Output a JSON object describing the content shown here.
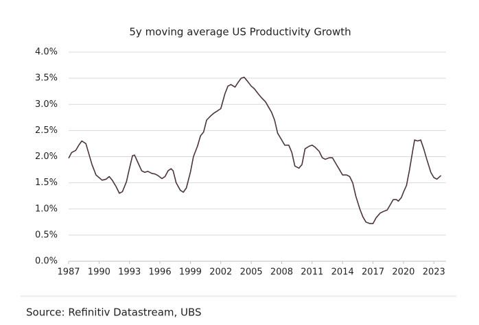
{
  "chart_data": {
    "type": "line",
    "title": "5y moving average US Productivity Growth",
    "source": "Source: Refinitiv Datastream, UBS",
    "x": [
      1987.0,
      1987.3,
      1987.7,
      1988.0,
      1988.3,
      1988.7,
      1989.0,
      1989.3,
      1989.7,
      1990.0,
      1990.3,
      1990.7,
      1991.0,
      1991.3,
      1991.7,
      1992.0,
      1992.3,
      1992.7,
      1993.0,
      1993.3,
      1993.5,
      1993.8,
      1994.2,
      1994.5,
      1994.8,
      1995.2,
      1995.5,
      1995.8,
      1996.2,
      1996.5,
      1996.8,
      1997.1,
      1997.3,
      1997.6,
      1998.0,
      1998.3,
      1998.6,
      1999.0,
      1999.3,
      1999.7,
      2000.0,
      2000.3,
      2000.6,
      2001.0,
      2001.3,
      2001.7,
      2002.0,
      2002.4,
      2002.7,
      2003.0,
      2003.4,
      2003.7,
      2004.0,
      2004.3,
      2004.6,
      2005.0,
      2005.3,
      2005.7,
      2006.0,
      2006.4,
      2006.7,
      2007.0,
      2007.3,
      2007.6,
      2008.0,
      2008.3,
      2008.7,
      2009.0,
      2009.3,
      2009.7,
      2010.0,
      2010.3,
      2010.7,
      2011.0,
      2011.3,
      2011.7,
      2012.0,
      2012.3,
      2012.7,
      2013.0,
      2013.3,
      2013.7,
      2014.0,
      2014.4,
      2014.7,
      2015.0,
      2015.3,
      2015.7,
      2016.0,
      2016.3,
      2016.7,
      2017.0,
      2017.3,
      2017.7,
      2018.0,
      2018.4,
      2018.7,
      2019.0,
      2019.3,
      2019.5,
      2019.8,
      2020.0,
      2020.3,
      2020.6,
      2020.9,
      2021.1,
      2021.4,
      2021.7,
      2022.0,
      2022.3,
      2022.7,
      2023.0,
      2023.3,
      2023.7
    ],
    "series": [
      {
        "color": "#4a3439",
        "values": [
          1.97,
          2.08,
          2.12,
          2.22,
          2.3,
          2.25,
          2.05,
          1.85,
          1.65,
          1.6,
          1.55,
          1.57,
          1.62,
          1.55,
          1.42,
          1.3,
          1.33,
          1.52,
          1.78,
          2.02,
          2.03,
          1.9,
          1.73,
          1.7,
          1.72,
          1.68,
          1.67,
          1.64,
          1.58,
          1.62,
          1.73,
          1.77,
          1.73,
          1.5,
          1.36,
          1.32,
          1.4,
          1.7,
          2.0,
          2.2,
          2.4,
          2.47,
          2.7,
          2.78,
          2.83,
          2.88,
          2.92,
          3.2,
          3.35,
          3.38,
          3.33,
          3.42,
          3.5,
          3.52,
          3.45,
          3.35,
          3.3,
          3.2,
          3.13,
          3.05,
          2.95,
          2.85,
          2.7,
          2.45,
          2.32,
          2.22,
          2.22,
          2.08,
          1.82,
          1.78,
          1.85,
          2.15,
          2.2,
          2.22,
          2.18,
          2.1,
          1.98,
          1.95,
          1.98,
          1.98,
          1.88,
          1.75,
          1.65,
          1.65,
          1.62,
          1.5,
          1.25,
          1.0,
          0.85,
          0.75,
          0.72,
          0.72,
          0.83,
          0.92,
          0.95,
          0.98,
          1.08,
          1.18,
          1.18,
          1.15,
          1.22,
          1.32,
          1.45,
          1.75,
          2.1,
          2.32,
          2.3,
          2.32,
          2.15,
          1.95,
          1.7,
          1.6,
          1.57,
          1.64
        ]
      }
    ],
    "xlim": [
      1987,
      2024.2
    ],
    "xticks": [
      1987,
      1990,
      1993,
      1996,
      1999,
      2002,
      2005,
      2008,
      2011,
      2014,
      2017,
      2020,
      2023
    ],
    "ylim": [
      0,
      4
    ],
    "yticks": [
      {
        "value": 0,
        "label": "0.0%"
      },
      {
        "value": 0.5,
        "label": "0.5%"
      },
      {
        "value": 1,
        "label": "1.0%"
      },
      {
        "value": 1.5,
        "label": "1.5%"
      },
      {
        "value": 2,
        "label": "2.0%"
      },
      {
        "value": 2.5,
        "label": "2.5%"
      },
      {
        "value": 3,
        "label": "3.0%"
      },
      {
        "value": 3.5,
        "label": "3.5%"
      },
      {
        "value": 4,
        "label": "4.0%"
      }
    ],
    "grid": true
  }
}
